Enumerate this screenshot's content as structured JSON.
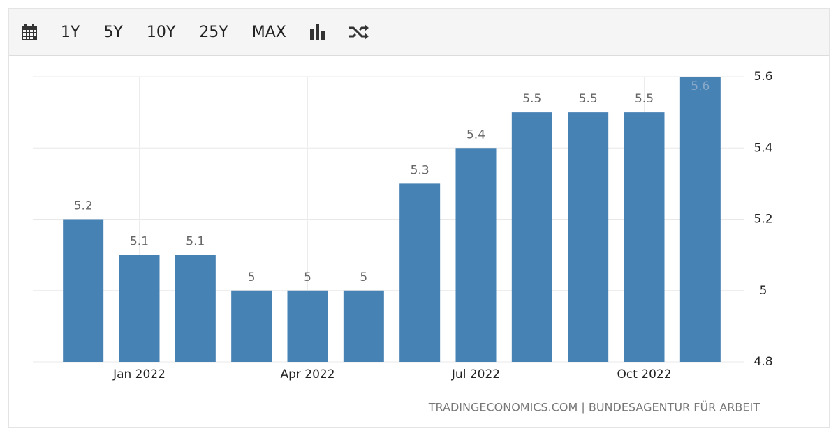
{
  "toolbar": {
    "buttons": [
      "1Y",
      "5Y",
      "10Y",
      "25Y",
      "MAX"
    ]
  },
  "chart_data": {
    "type": "bar",
    "categories": [
      null,
      "Jan 2022",
      null,
      null,
      "Apr 2022",
      null,
      null,
      "Jul 2022",
      null,
      null,
      "Oct 2022",
      null
    ],
    "values": [
      5.2,
      5.1,
      5.1,
      5,
      5,
      5,
      5.3,
      5.4,
      5.5,
      5.5,
      5.5,
      5.6
    ],
    "color": "#4682b4",
    "ylim": [
      4.8,
      5.6
    ],
    "yticks": [
      4.8,
      5,
      5.2,
      5.4,
      5.6
    ],
    "grid": true,
    "source": "TRADINGECONOMICS.COM | BUNDESAGENTUR FÜR ARBEIT"
  }
}
